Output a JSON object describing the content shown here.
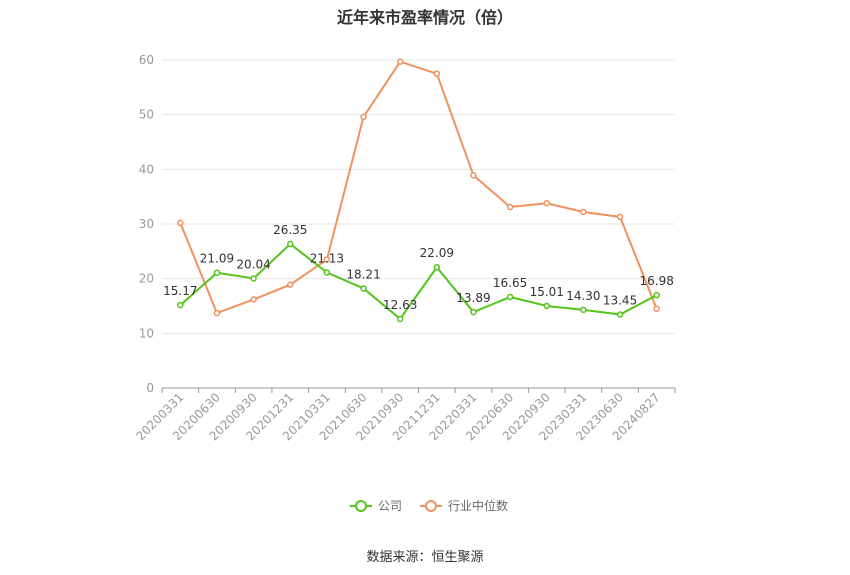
{
  "title": "近年来市盈率情况（倍）",
  "source": "数据来源：恒生聚源",
  "chart_data": {
    "type": "line",
    "categories": [
      "20200331",
      "20200630",
      "20200930",
      "20201231",
      "20210331",
      "20210630",
      "20210930",
      "20211231",
      "20220331",
      "20220630",
      "20220930",
      "20230331",
      "20230630",
      "20240827"
    ],
    "ylim": [
      0,
      60
    ],
    "yticks": [
      0,
      10,
      20,
      30,
      40,
      50,
      60
    ],
    "grid": true,
    "legend_position": "bottom",
    "series": [
      {
        "name": "公司",
        "color": "#52c41a",
        "values": [
          15.17,
          21.09,
          20.04,
          26.35,
          21.13,
          18.21,
          12.63,
          22.09,
          13.89,
          16.65,
          15.01,
          14.3,
          13.45,
          16.98
        ],
        "labels": [
          "15.17",
          "21.09",
          "20.04",
          "26.35",
          "21.13",
          "18.21",
          "12.63",
          "22.09",
          "13.89",
          "16.65",
          "15.01",
          "14.30",
          "13.45",
          "16.98"
        ]
      },
      {
        "name": "行业中位数",
        "color": "#f0915e",
        "values": [
          30.2,
          13.7,
          16.2,
          18.9,
          23.5,
          49.6,
          59.7,
          57.5,
          38.9,
          33.1,
          33.8,
          32.2,
          31.3,
          14.5
        ]
      }
    ]
  }
}
